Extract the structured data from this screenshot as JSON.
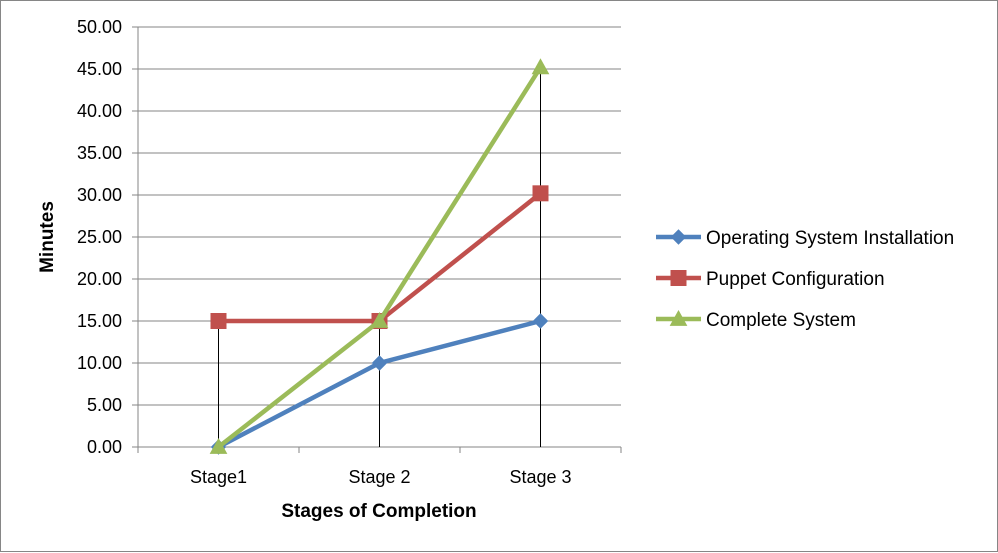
{
  "chart_data": {
    "type": "line",
    "categories": [
      "Stage1",
      "Stage 2",
      "Stage 3"
    ],
    "series": [
      {
        "name": "Operating System Installation",
        "values": [
          0,
          10,
          15
        ],
        "color": "#4f81bd",
        "marker": "diamond"
      },
      {
        "name": "Puppet Configuration",
        "values": [
          15,
          15,
          30.2
        ],
        "color": "#c0504d",
        "marker": "square"
      },
      {
        "name": "Complete System",
        "values": [
          0,
          15,
          45.2
        ],
        "color": "#9bbb59",
        "marker": "triangle"
      }
    ],
    "y_ticks": [
      "0.00",
      "5.00",
      "10.00",
      "15.00",
      "20.00",
      "25.00",
      "30.00",
      "35.00",
      "40.00",
      "45.00",
      "50.00"
    ],
    "xlabel": "Stages of Completion",
    "ylabel": "Minutes",
    "ylim": [
      0,
      50
    ],
    "grid": "horizontal",
    "drop_lines": true,
    "legend_position": "right"
  }
}
